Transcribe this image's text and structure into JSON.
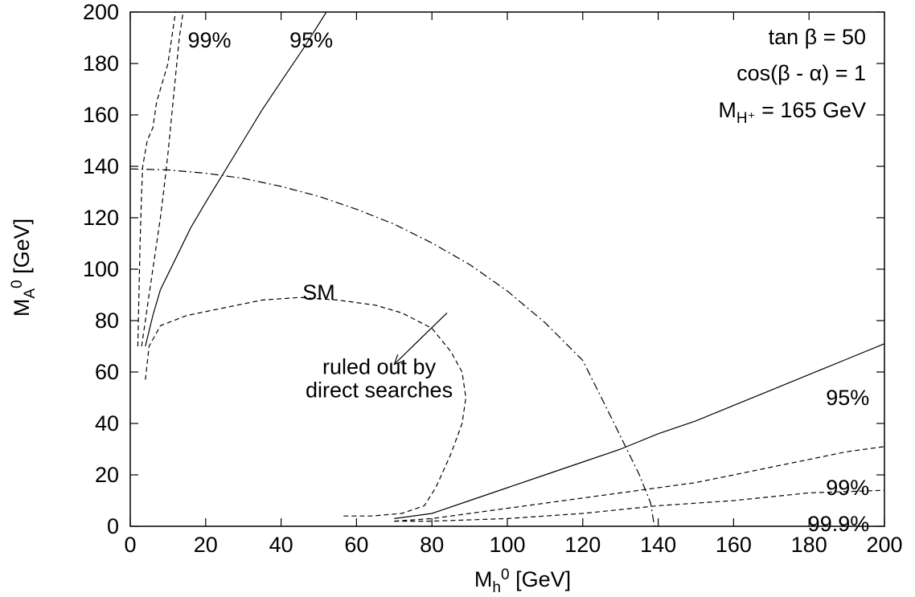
{
  "chart_data": {
    "type": "line",
    "xlabel": {
      "main": "M",
      "sub": "h",
      "sup": "0",
      "rest": " [GeV]"
    },
    "ylabel": {
      "main": "M",
      "sub": "A",
      "sup": "0",
      "rest": " [GeV]"
    },
    "xlim": [
      0,
      200
    ],
    "ylim": [
      0,
      200
    ],
    "xticks": [
      0,
      20,
      40,
      60,
      80,
      100,
      120,
      140,
      160,
      180,
      200
    ],
    "yticks": [
      0,
      20,
      40,
      60,
      80,
      100,
      120,
      140,
      160,
      180,
      200
    ],
    "grid": false,
    "legend": "none",
    "info": {
      "line1": "tan β = 50",
      "line2": "cos(β - α) = 1",
      "line3": {
        "main": "M",
        "sub": "H⁺",
        "rest": " = 165 GeV"
      }
    },
    "series": [
      {
        "key": "upper_95",
        "style": "solid",
        "points": [
          [
            4,
            70
          ],
          [
            6,
            82
          ],
          [
            8,
            92
          ],
          [
            12,
            104
          ],
          [
            16,
            116
          ],
          [
            20,
            126
          ],
          [
            25,
            138
          ],
          [
            30,
            150
          ],
          [
            35,
            162
          ],
          [
            40,
            173
          ],
          [
            46,
            186
          ],
          [
            52,
            200
          ]
        ]
      },
      {
        "key": "upper_99",
        "style": "dashed",
        "points": [
          [
            3,
            70
          ],
          [
            4,
            80
          ],
          [
            5,
            90
          ],
          [
            6,
            100
          ],
          [
            7,
            110
          ],
          [
            8,
            120
          ],
          [
            9,
            132
          ],
          [
            10,
            145
          ],
          [
            11,
            160
          ],
          [
            12,
            175
          ],
          [
            13,
            190
          ],
          [
            14,
            200
          ]
        ]
      },
      {
        "key": "upper_99_9",
        "style": "dashed",
        "points": [
          [
            2,
            70
          ],
          [
            2.3,
            90
          ],
          [
            2.6,
            110
          ],
          [
            3,
            130
          ],
          [
            3.3,
            140
          ],
          [
            4.5,
            150
          ],
          [
            6,
            155
          ],
          [
            7,
            165
          ],
          [
            8,
            170
          ],
          [
            10,
            180
          ],
          [
            11,
            190
          ],
          [
            12,
            200
          ]
        ]
      },
      {
        "key": "lower_95",
        "style": "solid",
        "points": [
          [
            70,
            3
          ],
          [
            80,
            5
          ],
          [
            90,
            10
          ],
          [
            100,
            15
          ],
          [
            110,
            20
          ],
          [
            120,
            25
          ],
          [
            130,
            30
          ],
          [
            140,
            36
          ],
          [
            150,
            41
          ],
          [
            160,
            47
          ],
          [
            170,
            53
          ],
          [
            180,
            59
          ],
          [
            190,
            65
          ],
          [
            200,
            71
          ]
        ]
      },
      {
        "key": "lower_99",
        "style": "dashed",
        "points": [
          [
            70,
            2
          ],
          [
            80,
            3
          ],
          [
            90,
            5
          ],
          [
            100,
            7
          ],
          [
            110,
            9
          ],
          [
            120,
            11
          ],
          [
            130,
            13
          ],
          [
            140,
            15
          ],
          [
            150,
            17
          ],
          [
            160,
            20
          ],
          [
            170,
            23
          ],
          [
            180,
            26
          ],
          [
            190,
            29
          ],
          [
            200,
            31
          ]
        ]
      },
      {
        "key": "lower_99_9",
        "style": "dashed",
        "points": [
          [
            70,
            2
          ],
          [
            80,
            2
          ],
          [
            100,
            3
          ],
          [
            120,
            5
          ],
          [
            140,
            8
          ],
          [
            160,
            10
          ],
          [
            180,
            13
          ],
          [
            200,
            14
          ]
        ]
      },
      {
        "key": "sm_direct",
        "style": "dashed",
        "points": [
          [
            4,
            57
          ],
          [
            5,
            70
          ],
          [
            8,
            78
          ],
          [
            15,
            82
          ],
          [
            25,
            85
          ],
          [
            35,
            88
          ],
          [
            45,
            89
          ],
          [
            55,
            88
          ],
          [
            65,
            86
          ],
          [
            72,
            83
          ],
          [
            80,
            77
          ],
          [
            85,
            68
          ],
          [
            88,
            60
          ],
          [
            89,
            50
          ],
          [
            88,
            40
          ],
          [
            85,
            28
          ],
          [
            81,
            15
          ],
          [
            78,
            8
          ],
          [
            72,
            5
          ],
          [
            64,
            4
          ],
          [
            56,
            4
          ]
        ]
      },
      {
        "key": "arc",
        "style": "dashdot",
        "points": [
          [
            0,
            139
          ],
          [
            10,
            138.6
          ],
          [
            20,
            137.3
          ],
          [
            30,
            135.3
          ],
          [
            40,
            132.2
          ],
          [
            50,
            128.3
          ],
          [
            60,
            123.3
          ],
          [
            70,
            117.5
          ],
          [
            80,
            110.2
          ],
          [
            90,
            101.8
          ],
          [
            100,
            91.5
          ],
          [
            110,
            79.2
          ],
          [
            120,
            64.5
          ],
          [
            128,
            41
          ],
          [
            135,
            20
          ],
          [
            138,
            9
          ],
          [
            139,
            0
          ]
        ]
      }
    ],
    "labels": [
      {
        "key": "upper_99",
        "text": "99%",
        "x": 21,
        "y": 189,
        "anchor": "middle"
      },
      {
        "key": "upper_95",
        "text": "95%",
        "x": 48,
        "y": 189,
        "anchor": "middle"
      },
      {
        "key": "sm",
        "text": "SM",
        "x": 50,
        "y": 91,
        "anchor": "middle"
      },
      {
        "key": "ruled1",
        "text": "ruled out by",
        "x": 66,
        "y": 62,
        "anchor": "middle"
      },
      {
        "key": "ruled2",
        "text": "direct searches",
        "x": 66,
        "y": 53,
        "anchor": "middle"
      },
      {
        "key": "lower_95",
        "text": "95%",
        "x": 196,
        "y": 50,
        "anchor": "end"
      },
      {
        "key": "lower_99",
        "text": "99%",
        "x": 196,
        "y": 15,
        "anchor": "end"
      },
      {
        "key": "lower_99_9",
        "text": "99.9%",
        "x": 196,
        "y": 1,
        "anchor": "end"
      }
    ],
    "arrow": {
      "from": [
        84,
        83
      ],
      "to": [
        70,
        63
      ]
    }
  }
}
